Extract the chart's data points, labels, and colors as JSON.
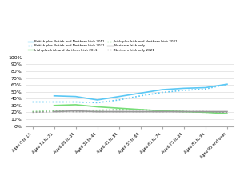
{
  "categories": [
    "Aged 0 to 15",
    "Aged 16 to 25",
    "Aged 26 to 34",
    "Aged 35 to 44",
    "Aged 45 to 54",
    "Aged 55 to 64",
    "Aged 65 to 74",
    "Aged 75 to 84",
    "Aged 85 to 94",
    "Aged 95 and over"
  ],
  "british_2011": [
    null,
    44,
    43,
    38,
    43,
    48,
    53,
    55,
    56,
    61
  ],
  "british_2021": [
    35,
    35,
    35,
    34,
    38,
    44,
    49,
    52,
    54,
    61
  ],
  "irish_2011": [
    null,
    30,
    31,
    28,
    26,
    24,
    22,
    21,
    20,
    18
  ],
  "irish_2021": [
    21,
    22,
    23,
    23,
    24,
    24,
    22,
    21,
    20,
    20
  ],
  "ni_only_2011": [
    null,
    21,
    22,
    21,
    21,
    21,
    21,
    21,
    21,
    21
  ],
  "ni_only_2021": [
    20,
    21,
    21,
    21,
    21,
    21,
    21,
    21,
    21,
    20
  ],
  "color_british": "#5bc8f5",
  "color_irish": "#77dd77",
  "color_ni": "#999999",
  "yticks": [
    0,
    10,
    20,
    30,
    40,
    50,
    60,
    70,
    80,
    90,
    100
  ],
  "background": "#ffffff",
  "legend_col1": [
    "British plus British and Northern Irish 2011",
    "Irish plus Irish and Northern Irish 2011",
    "Northern Irish only"
  ],
  "legend_col2": [
    "British plus British and Northern Irish 2021",
    "Irish plus Irish and Northern Irish 2021",
    "Northern Irish only 2021"
  ]
}
